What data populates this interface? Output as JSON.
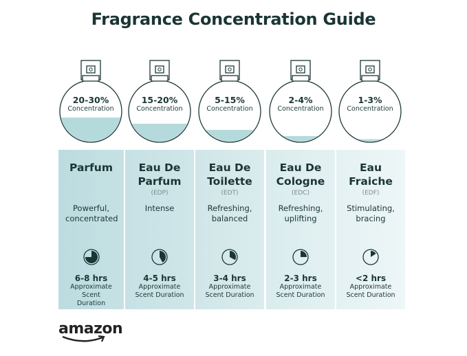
{
  "title": "Fragrance Concentration Guide",
  "colors": {
    "text": "#1b3535",
    "liquid": "#b5dadc",
    "panel_left": "#bcdcdf",
    "panel_right": "#eef6f7"
  },
  "columns": [
    {
      "percent": "20-30%",
      "concentration_label": "Concentration",
      "fill_level": 0.4,
      "name": "Parfum",
      "abbr": "",
      "description": "Powerful, concentrated",
      "hours": "6-8 hrs",
      "duration_label": "Approximate Scent Duration",
      "clock_fraction": 0.75
    },
    {
      "percent": "15-20%",
      "concentration_label": "Concentration",
      "fill_level": 0.3,
      "name": "Eau De Parfum",
      "abbr": "(EDP)",
      "description": "Intense",
      "hours": "4-5 hrs",
      "duration_label": "Approximate Scent Duration",
      "clock_fraction": 0.42
    },
    {
      "percent": "5-15%",
      "concentration_label": "Concentration",
      "fill_level": 0.2,
      "name": "Eau De Toilette",
      "abbr": "(EDT)",
      "description": "Refreshing, balanced",
      "hours": "3-4 hrs",
      "duration_label": "Approximate Scent Duration",
      "clock_fraction": 0.33
    },
    {
      "percent": "2-4%",
      "concentration_label": "Concentration",
      "fill_level": 0.1,
      "name": "Eau De Cologne",
      "abbr": "(EDC)",
      "description": "Refreshing, uplifting",
      "hours": "2-3 hrs",
      "duration_label": "Approximate Scent Duration",
      "clock_fraction": 0.25
    },
    {
      "percent": "1-3%",
      "concentration_label": "Concentration",
      "fill_level": 0.05,
      "name": "Eau Fraiche",
      "abbr": "(EDF)",
      "description": "Stimulating, bracing",
      "hours": "<2 hrs",
      "duration_label": "Approximate Scent Duration",
      "clock_fraction": 0.16
    }
  ],
  "logo": "amazon"
}
